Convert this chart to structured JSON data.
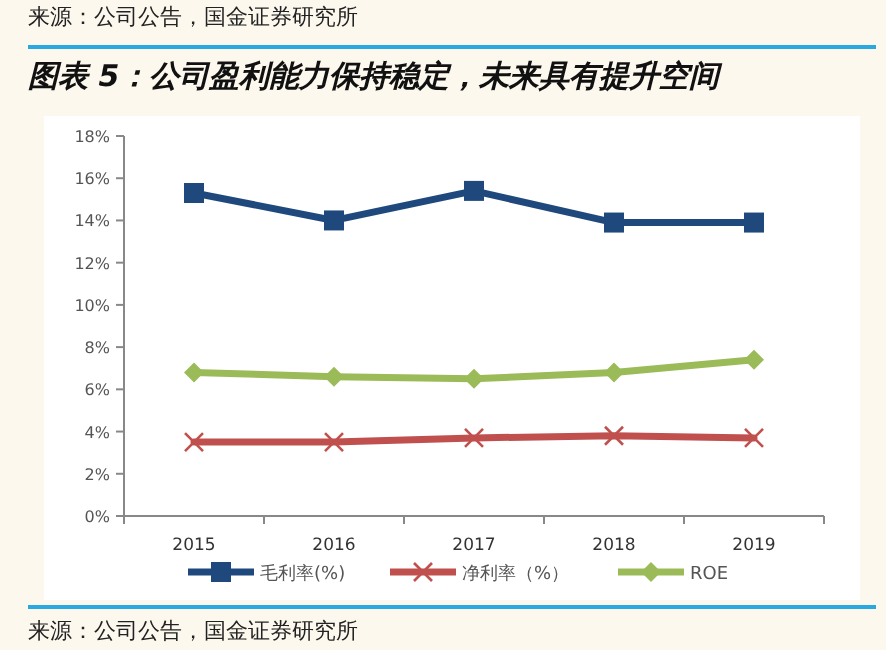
{
  "chart_data": {
    "type": "line",
    "title": "图表 5：公司盈利能力保持稳定，未来具有提升空间",
    "annotations": [
      "来源：公司公告，国金证券研究所",
      "来源：公司公告，国金证券研究所"
    ],
    "categories": [
      "2015",
      "2016",
      "2017",
      "2018",
      "2019"
    ],
    "series": [
      {
        "name": "毛利率(%)",
        "color": "#1f497d",
        "marker": "square",
        "values": [
          15.3,
          14.0,
          15.4,
          13.9,
          13.9
        ]
      },
      {
        "name": "净利率（%）",
        "color": "#c0504d",
        "marker": "cross",
        "values": [
          3.5,
          3.5,
          3.7,
          3.8,
          3.7
        ]
      },
      {
        "name": "ROE",
        "color": "#9bbb59",
        "marker": "diamond",
        "values": [
          6.8,
          6.6,
          6.5,
          6.8,
          7.4
        ]
      }
    ],
    "ylim": [
      0,
      18
    ],
    "yticks": [
      {
        "value": 0,
        "label": "0%"
      },
      {
        "value": 2,
        "label": "2%"
      },
      {
        "value": 4,
        "label": "4%"
      },
      {
        "value": 6,
        "label": "6%"
      },
      {
        "value": 8,
        "label": "8%"
      },
      {
        "value": 10,
        "label": "10%"
      },
      {
        "value": 12,
        "label": "12%"
      },
      {
        "value": 14,
        "label": "14%"
      },
      {
        "value": 16,
        "label": "16%"
      },
      {
        "value": 18,
        "label": "18%"
      }
    ],
    "grid": false,
    "legend": "bottom"
  }
}
